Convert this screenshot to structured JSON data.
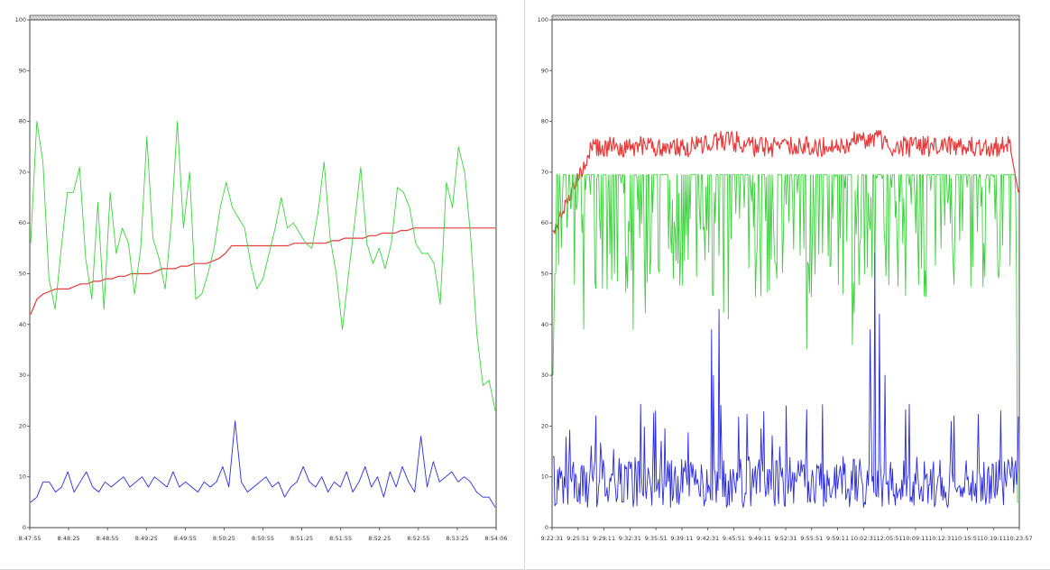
{
  "chart_data": [
    {
      "type": "line",
      "ylim": [
        0,
        100
      ],
      "yticks": [
        "0",
        "10",
        "20",
        "30",
        "40",
        "50",
        "60",
        "70",
        "80",
        "90",
        "100"
      ],
      "xticks": [
        "8:47:55",
        "8:48:25",
        "8:48:55",
        "8:49:25",
        "8:49:55",
        "8:50:25",
        "8:50:55",
        "8:51:25",
        "8:51:55",
        "8:52:25",
        "8:52:55",
        "8:53:25",
        "8:54:06"
      ],
      "grid": false,
      "series": [
        {
          "color": "#e83a3a",
          "values": [
            42,
            45,
            46,
            46.5,
            47,
            47,
            47,
            47.5,
            48,
            48,
            48.5,
            48.5,
            49,
            49,
            49.5,
            49.5,
            50,
            50,
            50,
            50,
            50.5,
            51,
            51,
            51,
            51.5,
            51.5,
            52,
            52,
            52,
            52.5,
            53,
            54,
            55.5,
            55.5,
            55.5,
            55.5,
            55.5,
            55.5,
            55.5,
            55.5,
            55.5,
            55.5,
            56,
            56,
            56,
            56,
            56,
            56,
            56.5,
            56.5,
            57,
            57,
            57,
            57,
            57.5,
            57.5,
            58,
            58,
            58,
            58.5,
            58.5,
            59,
            59,
            59,
            59,
            59,
            59,
            59,
            59,
            59,
            59,
            59,
            59,
            59,
            59
          ]
        },
        {
          "color": "#3cd23c",
          "values": [
            56,
            80,
            72,
            49,
            43,
            55,
            66,
            66,
            71,
            53,
            45,
            64,
            43,
            66,
            54,
            59,
            56,
            46,
            55,
            77,
            57,
            53,
            47,
            60,
            80,
            59,
            70,
            45,
            46,
            50,
            55,
            63,
            68,
            63,
            61,
            59,
            52,
            47,
            49,
            54,
            59,
            65,
            59,
            60,
            58,
            56,
            55,
            62,
            72,
            57,
            50,
            39,
            50,
            60,
            71,
            56,
            52,
            55,
            51,
            56,
            67,
            66,
            63,
            56,
            54,
            54,
            52,
            44,
            68,
            63,
            75,
            70,
            57,
            38,
            28,
            29,
            23
          ]
        },
        {
          "color": "#2a2ae0",
          "values": [
            5,
            6,
            9,
            9,
            7,
            8,
            11,
            7,
            9,
            11,
            8,
            7,
            9,
            8,
            9,
            10,
            8,
            9,
            10,
            8,
            10,
            9,
            8,
            11,
            8,
            9,
            8,
            7,
            9,
            8,
            9,
            12,
            8,
            21,
            9,
            7,
            8,
            9,
            10,
            8,
            9,
            6,
            8,
            9,
            12,
            9,
            8,
            10,
            7,
            9,
            8,
            11,
            7,
            9,
            12,
            8,
            10,
            6,
            11,
            8,
            12,
            9,
            7,
            18,
            8,
            13,
            9,
            10,
            11,
            9,
            10,
            9,
            7,
            6,
            6,
            4
          ]
        }
      ]
    },
    {
      "type": "line",
      "ylim": [
        0,
        100
      ],
      "yticks": [
        "0",
        "10",
        "20",
        "30",
        "40",
        "50",
        "60",
        "70",
        "80",
        "90",
        "100"
      ],
      "xticks": [
        "9:22:31",
        "9:25:51",
        "9:29:11",
        "9:32:31",
        "9:35:51",
        "9:39:11",
        "9:42:31",
        "9:45:51",
        "9:49:11",
        "9:52:31",
        "9:55:51",
        "9:59:11",
        "10:02:31",
        "12:05:51",
        "10:09:11",
        "10:12:31",
        "10:15:51",
        "10:19:11",
        "10:23:57"
      ],
      "grid": false,
      "series": [
        {
          "color": "#e83a3a",
          "name": "",
          "values": []
        },
        {
          "color": "#3cd23c",
          "name": "",
          "values": []
        },
        {
          "color": "#2a2ae0",
          "name": "",
          "values": []
        }
      ]
    }
  ]
}
